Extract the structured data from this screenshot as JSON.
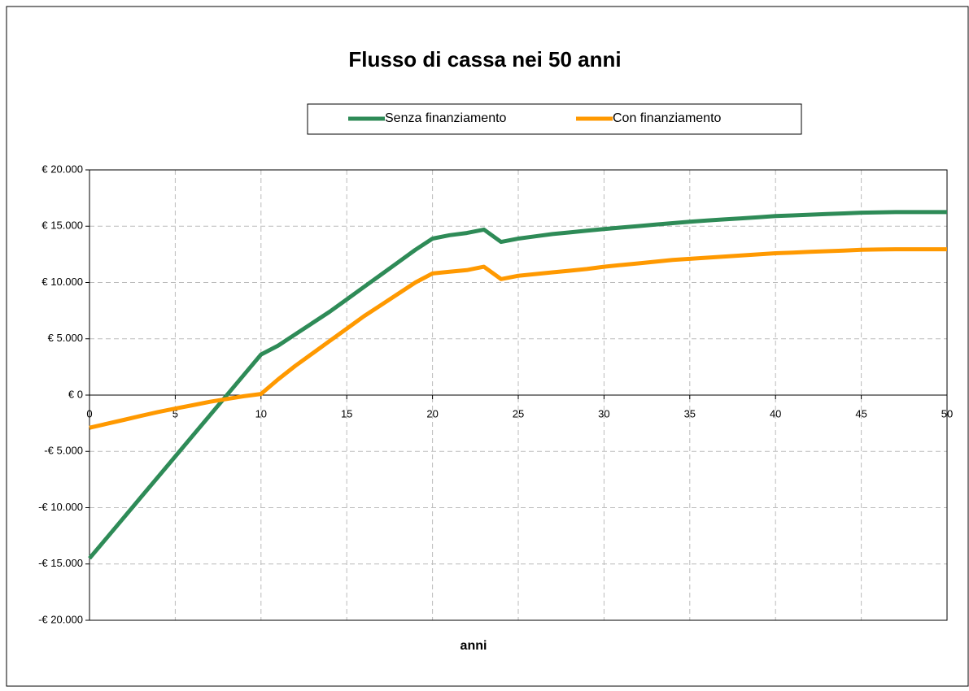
{
  "chart_data": {
    "type": "line",
    "title": "Flusso di cassa nei 50 anni",
    "x_label": "anni",
    "x": [
      0,
      1,
      2,
      3,
      4,
      5,
      6,
      7,
      8,
      9,
      10,
      11,
      12,
      13,
      14,
      15,
      16,
      17,
      18,
      19,
      20,
      21,
      22,
      23,
      24,
      25,
      26,
      27,
      28,
      29,
      30,
      31,
      32,
      33,
      34,
      35,
      36,
      37,
      38,
      39,
      40,
      41,
      42,
      43,
      44,
      45,
      46,
      47,
      48,
      49,
      50
    ],
    "series": [
      {
        "name": "Senza finanziamento",
        "color": "#2e8b57",
        "values": [
          -14500,
          -12690,
          -10880,
          -9070,
          -7260,
          -5450,
          -3640,
          -1830,
          -20,
          1790,
          3600,
          4400,
          5400,
          6400,
          7400,
          8500,
          9600,
          10700,
          11800,
          12900,
          13900,
          14200,
          14400,
          14700,
          13600,
          13900,
          14100,
          14300,
          14450,
          14600,
          14750,
          14880,
          15010,
          15140,
          15270,
          15400,
          15500,
          15600,
          15700,
          15800,
          15900,
          15960,
          16020,
          16080,
          16140,
          16200,
          16230,
          16250,
          16250,
          16250,
          16250
        ]
      },
      {
        "name": "Con finanziamento",
        "color": "#ff9900",
        "values": [
          -2900,
          -2550,
          -2200,
          -1850,
          -1500,
          -1200,
          -900,
          -600,
          -350,
          -100,
          100,
          1400,
          2600,
          3700,
          4800,
          5900,
          7000,
          8000,
          9000,
          10000,
          10800,
          10950,
          11100,
          11400,
          10300,
          10600,
          10750,
          10900,
          11050,
          11200,
          11400,
          11550,
          11700,
          11850,
          12000,
          12100,
          12200,
          12300,
          12400,
          12500,
          12600,
          12660,
          12720,
          12780,
          12840,
          12900,
          12930,
          12950,
          12950,
          12950,
          12950
        ]
      }
    ],
    "xlim": [
      0,
      50
    ],
    "xticks": [
      0,
      5,
      10,
      15,
      20,
      25,
      30,
      35,
      40,
      45,
      50
    ],
    "ylim": [
      -20000,
      20000
    ],
    "yticks": [
      {
        "value": -20000,
        "label": "-€ 20.000"
      },
      {
        "value": -15000,
        "label": "-€ 15.000"
      },
      {
        "value": -10000,
        "label": "-€ 10.000"
      },
      {
        "value": -5000,
        "label": "-€ 5.000"
      },
      {
        "value": 0,
        "label": "€ 0"
      },
      {
        "value": 5000,
        "label": "€ 5.000"
      },
      {
        "value": 10000,
        "label": "€ 10.000"
      },
      {
        "value": 15000,
        "label": "€ 15.000"
      },
      {
        "value": 20000,
        "label": "€ 20.000"
      }
    ],
    "grid": true,
    "legend": "top"
  }
}
